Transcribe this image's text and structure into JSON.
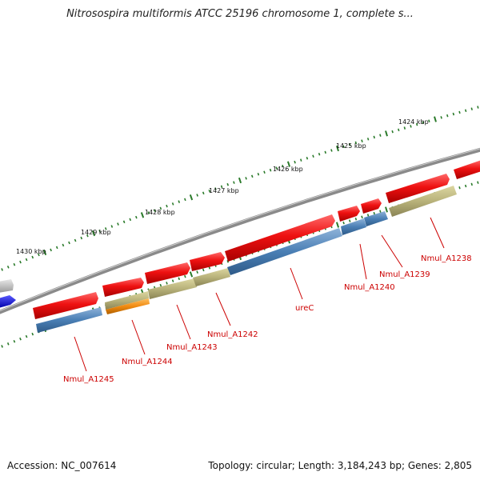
{
  "header": {
    "title": "Nitrosospira multiformis ATCC 25196 chromosome 1, complete s..."
  },
  "footer": {
    "accession": "Accession: NC_007614",
    "topology": "Topology: circular; Length: 3,184,243 bp; Genes: 2,805"
  },
  "ruler": {
    "labels": [
      "1424 kbp",
      "1425 kbp",
      "1426 kbp",
      "1427 kbp",
      "1428 kbp",
      "1429 kbp",
      "1430 kbp"
    ]
  },
  "genes": {
    "labels": [
      "Nmul_A1238",
      "Nmul_A1239",
      "Nmul_A1240",
      "ureC",
      "Nmul_A1242",
      "Nmul_A1243",
      "Nmul_A1244",
      "Nmul_A1245"
    ]
  },
  "colors": {
    "cds": "#ee1111",
    "rna_blue": "#4a7fb5",
    "rna_khaki": "#b8b27a",
    "orange": "#f08a10",
    "backbone": "#7a7a7a",
    "tick": "#2a7a2a",
    "label": "#cc0000"
  }
}
